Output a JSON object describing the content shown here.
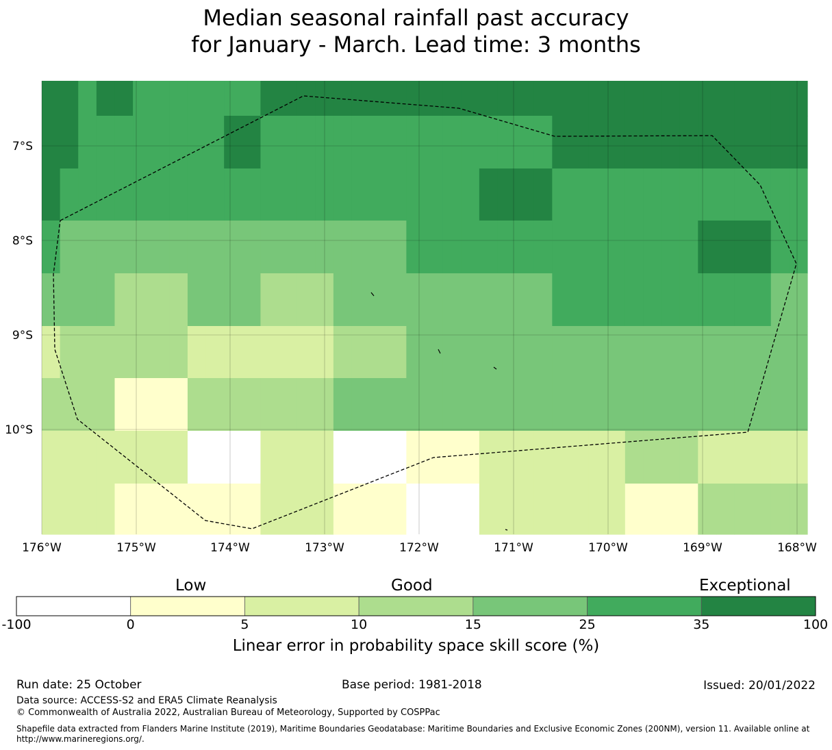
{
  "title": {
    "line1": "Median seasonal rainfall past accuracy",
    "line2": "for January - March. Lead time: 3 months"
  },
  "map": {
    "lat_ticks": [
      "7°S",
      "8°S",
      "9°S",
      "10°S"
    ],
    "lon_ticks": [
      "176°W",
      "175°W",
      "174°W",
      "173°W",
      "172°W",
      "171°W",
      "170°W",
      "169°W",
      "168°W"
    ],
    "category_colors": [
      "#ffffff",
      "#ffffcc",
      "#d9f0a3",
      "#addd8e",
      "#78c679",
      "#41ab5d",
      "#238443"
    ],
    "grid_rows": [
      [
        6,
        6,
        5,
        6,
        6,
        5,
        5,
        5,
        5,
        5,
        5,
        5,
        6,
        6,
        6,
        6,
        6,
        6,
        6,
        6,
        6,
        6,
        6,
        6,
        6,
        6,
        6,
        6,
        6,
        6,
        6,
        6,
        6,
        6,
        6,
        6,
        6,
        6,
        6,
        6,
        6,
        6
      ],
      [
        6,
        6,
        5,
        5,
        5,
        5,
        5,
        5,
        5,
        5,
        6,
        6,
        5,
        5,
        5,
        5,
        5,
        5,
        5,
        5,
        5,
        5,
        5,
        5,
        5,
        5,
        5,
        5,
        6,
        6,
        6,
        6,
        6,
        6,
        6,
        6,
        6,
        6,
        6,
        6,
        6,
        6
      ],
      [
        6,
        5,
        5,
        5,
        5,
        5,
        5,
        5,
        5,
        5,
        5,
        5,
        5,
        5,
        5,
        5,
        5,
        5,
        5,
        5,
        5,
        5,
        5,
        5,
        6,
        6,
        6,
        6,
        5,
        5,
        5,
        5,
        5,
        5,
        5,
        5,
        5,
        5,
        5,
        5,
        5,
        5
      ],
      [
        5,
        4,
        4,
        4,
        4,
        4,
        4,
        4,
        4,
        4,
        4,
        4,
        4,
        4,
        4,
        4,
        4,
        4,
        4,
        4,
        5,
        5,
        5,
        5,
        5,
        5,
        5,
        5,
        5,
        5,
        5,
        5,
        5,
        5,
        5,
        5,
        6,
        6,
        6,
        6,
        5,
        5
      ],
      [
        4,
        4,
        4,
        4,
        3,
        3,
        3,
        3,
        4,
        4,
        4,
        4,
        3,
        3,
        3,
        3,
        4,
        4,
        4,
        4,
        4,
        4,
        4,
        4,
        4,
        4,
        4,
        4,
        5,
        5,
        5,
        5,
        5,
        5,
        5,
        5,
        5,
        5,
        5,
        5,
        4,
        4
      ],
      [
        2,
        3,
        3,
        3,
        3,
        3,
        3,
        3,
        2,
        2,
        2,
        2,
        2,
        2,
        2,
        2,
        3,
        3,
        3,
        3,
        4,
        4,
        4,
        4,
        4,
        4,
        4,
        4,
        4,
        4,
        4,
        4,
        4,
        4,
        4,
        4,
        4,
        4,
        4,
        4,
        4,
        4
      ],
      [
        3,
        3,
        3,
        3,
        1,
        1,
        1,
        1,
        3,
        3,
        3,
        3,
        3,
        3,
        3,
        3,
        4,
        4,
        4,
        4,
        4,
        4,
        4,
        4,
        4,
        4,
        4,
        4,
        4,
        4,
        4,
        4,
        4,
        4,
        4,
        4,
        4,
        4,
        4,
        4,
        4,
        4
      ],
      [
        2,
        2,
        2,
        2,
        2,
        2,
        2,
        2,
        0,
        0,
        0,
        0,
        2,
        2,
        2,
        2,
        0,
        0,
        0,
        0,
        1,
        1,
        1,
        1,
        2,
        2,
        2,
        2,
        2,
        2,
        2,
        2,
        3,
        3,
        3,
        3,
        2,
        2,
        2,
        2,
        2,
        2
      ],
      [
        2,
        2,
        2,
        2,
        1,
        1,
        1,
        1,
        1,
        1,
        1,
        1,
        2,
        2,
        2,
        2,
        1,
        1,
        1,
        1,
        0,
        0,
        0,
        0,
        2,
        2,
        2,
        2,
        2,
        2,
        2,
        2,
        1,
        1,
        1,
        1,
        3,
        3,
        3,
        3,
        3,
        3
      ]
    ]
  },
  "colorbar": {
    "label_low": "Low",
    "label_good": "Good",
    "label_exceptional": "Exceptional",
    "ticks": [
      "-100",
      "0",
      "5",
      "10",
      "15",
      "25",
      "35",
      "100"
    ],
    "axis_title": "Linear error in probability space skill score (%)"
  },
  "footer": {
    "run_date": "Run date: 25 October",
    "base_period": "Base period: 1981-2018",
    "issued": "Issued: 20/01/2022",
    "data_source": "Data source: ACCESS-S2 and ERA5 Climate Reanalysis",
    "copyright": "© Commonwealth of Australia 2022, Australian Bureau of Meteorology, Supported by COSPPac",
    "shapefile_line1": "Shapefile data extracted from Flanders Marine Institute (2019), Maritime Boundaries Geodatabase: Maritime Boundaries and Exclusive Economic Zones (200NM), version 11. Available online at",
    "shapefile_line2": "http://www.marineregions.org/."
  }
}
